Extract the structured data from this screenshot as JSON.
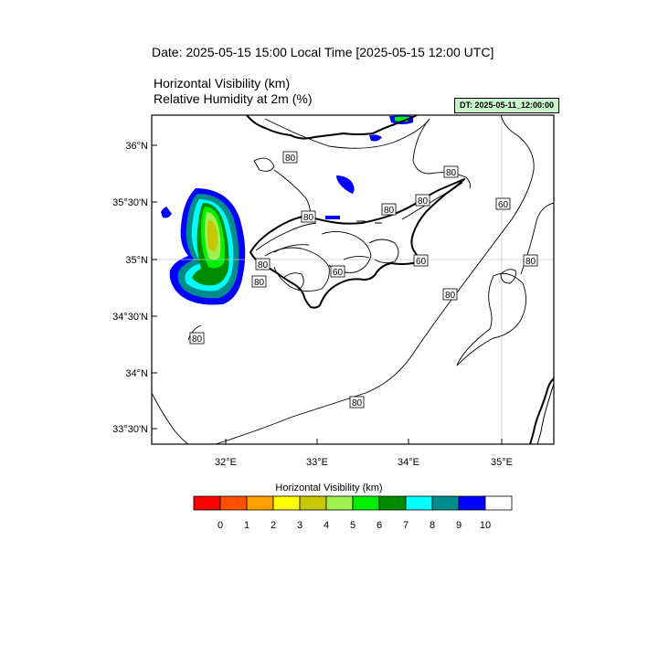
{
  "header": {
    "date_line": "Date: 2025-05-15  15:00 Local Time [2025-05-15  12:00 UTC]",
    "variable_1": "Horizontal Visibility   (km)",
    "variable_2": "Relative Humidity at 2m   (%)",
    "dt_badge": "DT: 2025-05-11_12:00:00",
    "dt_badge_color": "#c8f5c8"
  },
  "axes": {
    "lat_labels": [
      "36°N",
      "35°30'N",
      "35°N",
      "34°30'N",
      "34°N",
      "33°30'N"
    ],
    "lon_labels": [
      "32°E",
      "33°E",
      "34°E",
      "35°E"
    ]
  },
  "contours": {
    "rh_labels": [
      "80",
      "80",
      "80",
      "80",
      "80",
      "80",
      "60",
      "80",
      "60",
      "80",
      "60",
      "80",
      "80",
      "80",
      "80",
      "80"
    ]
  },
  "colorbar": {
    "title": "Horizontal Visibility  (km)",
    "ticks": [
      "0",
      "1",
      "2",
      "3",
      "4",
      "5",
      "6",
      "7",
      "8",
      "9",
      "10"
    ],
    "colors": [
      "#ff0000",
      "#ff5000",
      "#ffa000",
      "#ffff00",
      "#c8c800",
      "#a0f050",
      "#00f000",
      "#008c00",
      "#00ffff",
      "#008c8c",
      "#0000ff",
      "#ffffff"
    ]
  }
}
